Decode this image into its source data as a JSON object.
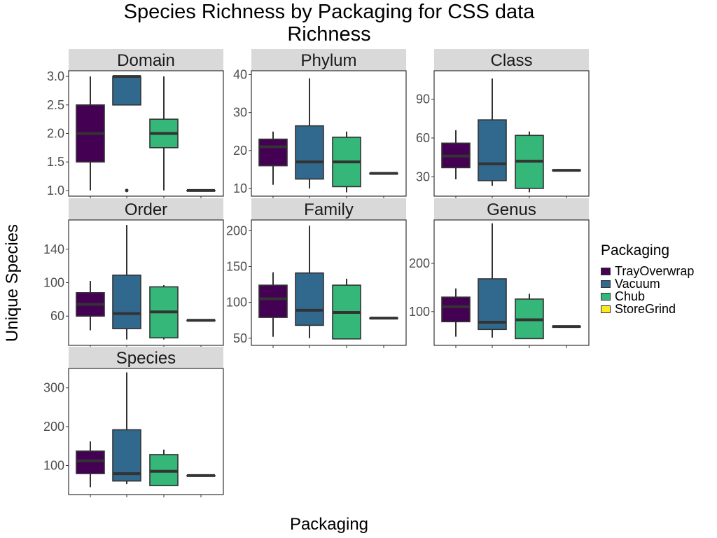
{
  "title_line1": "Species Richness by Packaging for CSS data",
  "title_line2": "Richness",
  "xlabel": "Packaging",
  "ylabel": "Unique Species",
  "legend": {
    "title": "Packaging",
    "items": [
      {
        "label": "TrayOverwrap",
        "color": "#440154"
      },
      {
        "label": "Vacuum",
        "color": "#31688E"
      },
      {
        "label": "Chub",
        "color": "#35B779"
      },
      {
        "label": "StoreGrind",
        "color": "#FDE725"
      }
    ]
  },
  "chart_data": {
    "type": "boxplot",
    "categories": [
      "TrayOverwrap",
      "Vacuum",
      "Chub",
      "StoreGrind"
    ],
    "facets": [
      {
        "name": "Domain",
        "yticks": [
          1.0,
          1.5,
          2.0,
          2.5,
          3.0
        ],
        "ytick_labels": [
          "1.0",
          "1.5",
          "2.0",
          "2.5",
          "3.0"
        ],
        "ylim": [
          0.9,
          3.1
        ],
        "boxes": [
          {
            "min": 1.0,
            "q1": 1.5,
            "median": 2.0,
            "q3": 2.5,
            "max": 3.0,
            "outliers": []
          },
          {
            "min": 2.5,
            "q1": 2.5,
            "median": 3.0,
            "q3": 3.0,
            "max": 3.0,
            "outliers": [
              1.0
            ]
          },
          {
            "min": 1.0,
            "q1": 1.75,
            "median": 2.0,
            "q3": 2.25,
            "max": 3.0,
            "outliers": []
          },
          {
            "min": 1.0,
            "q1": 1.0,
            "median": 1.0,
            "q3": 1.0,
            "max": 1.0,
            "outliers": []
          }
        ]
      },
      {
        "name": "Phylum",
        "yticks": [
          10,
          20,
          30,
          40
        ],
        "ytick_labels": [
          "10",
          "20",
          "30",
          "40"
        ],
        "ylim": [
          8,
          41
        ],
        "boxes": [
          {
            "min": 11,
            "q1": 16,
            "median": 21,
            "q3": 23,
            "max": 25,
            "outliers": []
          },
          {
            "min": 10,
            "q1": 12.5,
            "median": 17,
            "q3": 26.5,
            "max": 39,
            "outliers": []
          },
          {
            "min": 9,
            "q1": 10.5,
            "median": 17,
            "q3": 23.5,
            "max": 25,
            "outliers": []
          },
          {
            "min": 14,
            "q1": 14,
            "median": 14,
            "q3": 14,
            "max": 14,
            "outliers": []
          }
        ]
      },
      {
        "name": "Class",
        "yticks": [
          30,
          60,
          90
        ],
        "ytick_labels": [
          "30",
          "60",
          "90"
        ],
        "ylim": [
          15,
          112
        ],
        "boxes": [
          {
            "min": 28,
            "q1": 37,
            "median": 46,
            "q3": 56,
            "max": 66,
            "outliers": []
          },
          {
            "min": 23,
            "q1": 27,
            "median": 40,
            "q3": 74,
            "max": 106,
            "outliers": []
          },
          {
            "min": 18,
            "q1": 21,
            "median": 42,
            "q3": 62,
            "max": 65,
            "outliers": []
          },
          {
            "min": 35,
            "q1": 35,
            "median": 35,
            "q3": 35,
            "max": 35,
            "outliers": []
          }
        ]
      },
      {
        "name": "Order",
        "yticks": [
          60,
          100,
          140
        ],
        "ytick_labels": [
          "60",
          "100",
          "140"
        ],
        "ylim": [
          25,
          175
        ],
        "boxes": [
          {
            "min": 43,
            "q1": 60,
            "median": 74,
            "q3": 88,
            "max": 102,
            "outliers": []
          },
          {
            "min": 32,
            "q1": 45,
            "median": 63,
            "q3": 109,
            "max": 169,
            "outliers": []
          },
          {
            "min": 32,
            "q1": 34,
            "median": 65,
            "q3": 95,
            "max": 97,
            "outliers": []
          },
          {
            "min": 55,
            "q1": 55,
            "median": 55,
            "q3": 55,
            "max": 55,
            "outliers": []
          }
        ]
      },
      {
        "name": "Family",
        "yticks": [
          50,
          100,
          150,
          200
        ],
        "ytick_labels": [
          "50",
          "100",
          "150",
          "200"
        ],
        "ylim": [
          40,
          215
        ],
        "boxes": [
          {
            "min": 52,
            "q1": 79,
            "median": 105,
            "q3": 124,
            "max": 142,
            "outliers": []
          },
          {
            "min": 50,
            "q1": 68,
            "median": 89,
            "q3": 141,
            "max": 207,
            "outliers": []
          },
          {
            "min": 49,
            "q1": 49,
            "median": 86,
            "q3": 124,
            "max": 133,
            "outliers": []
          },
          {
            "min": 78,
            "q1": 78,
            "median": 78,
            "q3": 78,
            "max": 78,
            "outliers": []
          }
        ]
      },
      {
        "name": "Genus",
        "yticks": [
          100,
          200
        ],
        "ytick_labels": [
          "100",
          "200"
        ],
        "ylim": [
          30,
          290
        ],
        "boxes": [
          {
            "min": 48,
            "q1": 79,
            "median": 110,
            "q3": 130,
            "max": 148,
            "outliers": []
          },
          {
            "min": 46,
            "q1": 63,
            "median": 78,
            "q3": 168,
            "max": 283,
            "outliers": []
          },
          {
            "min": 44,
            "q1": 44,
            "median": 83,
            "q3": 126,
            "max": 137,
            "outliers": []
          },
          {
            "min": 69,
            "q1": 69,
            "median": 69,
            "q3": 69,
            "max": 69,
            "outliers": []
          }
        ]
      },
      {
        "name": "Species",
        "yticks": [
          100,
          200,
          300
        ],
        "ytick_labels": [
          "100",
          "200",
          "300"
        ],
        "ylim": [
          25,
          350
        ],
        "boxes": [
          {
            "min": 44,
            "q1": 79,
            "median": 112,
            "q3": 137,
            "max": 162,
            "outliers": []
          },
          {
            "min": 52,
            "q1": 60,
            "median": 79,
            "q3": 192,
            "max": 340,
            "outliers": []
          },
          {
            "min": 48,
            "q1": 48,
            "median": 85,
            "q3": 128,
            "max": 141,
            "outliers": []
          },
          {
            "min": 74,
            "q1": 74,
            "median": 74,
            "q3": 74,
            "max": 74,
            "outliers": []
          }
        ]
      }
    ]
  }
}
